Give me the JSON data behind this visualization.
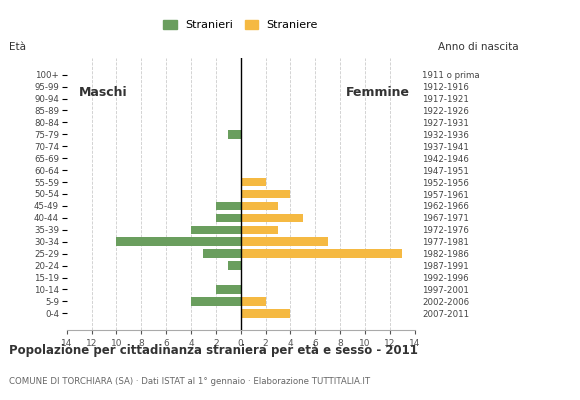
{
  "age_groups": [
    "100+",
    "95-99",
    "90-94",
    "85-89",
    "80-84",
    "75-79",
    "70-74",
    "65-69",
    "60-64",
    "55-59",
    "50-54",
    "45-49",
    "40-44",
    "35-39",
    "30-34",
    "25-29",
    "20-24",
    "15-19",
    "10-14",
    "5-9",
    "0-4"
  ],
  "birth_years": [
    "1911 o prima",
    "1912-1916",
    "1917-1921",
    "1922-1926",
    "1927-1931",
    "1932-1936",
    "1937-1941",
    "1942-1946",
    "1947-1951",
    "1952-1956",
    "1957-1961",
    "1962-1966",
    "1967-1971",
    "1972-1976",
    "1977-1981",
    "1982-1986",
    "1987-1991",
    "1992-1996",
    "1997-2001",
    "2002-2006",
    "2007-2011"
  ],
  "maschi": [
    0,
    0,
    0,
    0,
    0,
    1,
    0,
    0,
    0,
    0,
    0,
    2,
    2,
    4,
    10,
    3,
    1,
    0,
    2,
    4,
    0
  ],
  "femmine": [
    0,
    0,
    0,
    0,
    0,
    0,
    0,
    0,
    0,
    2,
    4,
    3,
    5,
    3,
    7,
    13,
    0,
    0,
    0,
    2,
    4
  ],
  "color_maschi": "#6a9e5e",
  "color_femmine": "#f5b942",
  "title": "Popolazione per cittadinanza straniera per età e sesso - 2011",
  "subtitle": "COMUNE DI TORCHIARA (SA) · Dati ISTAT al 1° gennaio · Elaborazione TUTTITALIA.IT",
  "legend_maschi": "Stranieri",
  "legend_femmine": "Straniere",
  "label_eta": "Età",
  "label_anno": "Anno di nascita",
  "label_maschi": "Maschi",
  "label_femmine": "Femmine",
  "xlim": 14,
  "background_color": "#ffffff",
  "grid_color": "#cccccc",
  "spine_color": "#aaaaaa"
}
